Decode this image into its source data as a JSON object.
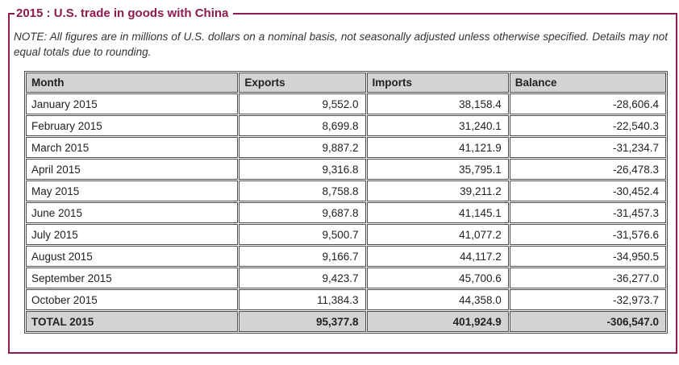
{
  "page": {
    "title": "2015 : U.S. trade in goods with China",
    "note": "NOTE: All figures are in millions of U.S. dollars on a nominal basis, not seasonally adjusted unless otherwise specified. Details may not equal totals due to rounding."
  },
  "colors": {
    "accent": "#8e1b4e",
    "table_border": "#4d4d4d",
    "header_bg": "#d3d3d3"
  },
  "table": {
    "columns": [
      "Month",
      "Exports",
      "Imports",
      "Balance"
    ],
    "rows": [
      [
        "January 2015",
        "9,552.0",
        "38,158.4",
        "-28,606.4"
      ],
      [
        "February 2015",
        "8,699.8",
        "31,240.1",
        "-22,540.3"
      ],
      [
        "March 2015",
        "9,887.2",
        "41,121.9",
        "-31,234.7"
      ],
      [
        "April 2015",
        "9,316.8",
        "35,795.1",
        "-26,478.3"
      ],
      [
        "May 2015",
        "8,758.8",
        "39,211.2",
        "-30,452.4"
      ],
      [
        "June 2015",
        "9,687.8",
        "41,145.1",
        "-31,457.3"
      ],
      [
        "July 2015",
        "9,500.7",
        "41,077.2",
        "-31,576.6"
      ],
      [
        "August 2015",
        "9,166.7",
        "44,117.2",
        "-34,950.5"
      ],
      [
        "September 2015",
        "9,423.7",
        "45,700.6",
        "-36,277.0"
      ],
      [
        "October 2015",
        "11,384.3",
        "44,358.0",
        "-32,973.7"
      ]
    ],
    "total": [
      "TOTAL 2015",
      "95,377.8",
      "401,924.9",
      "-306,547.0"
    ]
  }
}
